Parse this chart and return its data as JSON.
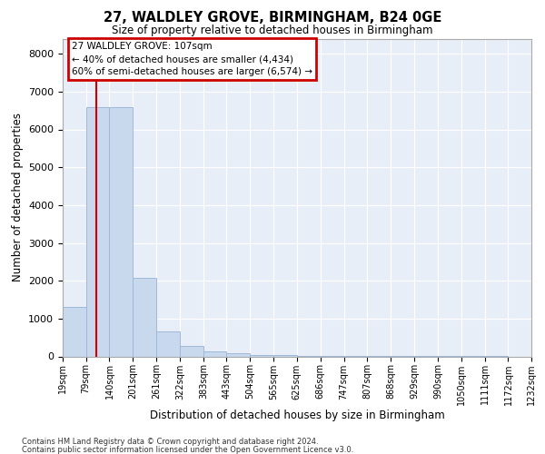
{
  "title1": "27, WALDLEY GROVE, BIRMINGHAM, B24 0GE",
  "title2": "Size of property relative to detached houses in Birmingham",
  "xlabel": "Distribution of detached houses by size in Birmingham",
  "ylabel": "Number of detached properties",
  "footnote1": "Contains HM Land Registry data © Crown copyright and database right 2024.",
  "footnote2": "Contains public sector information licensed under the Open Government Licence v3.0.",
  "annotation_line1": "27 WALDLEY GROVE: 107sqm",
  "annotation_line2": "← 40% of detached houses are smaller (4,434)",
  "annotation_line3": "60% of semi-detached houses are larger (6,574) →",
  "bar_color": "#c9d9ed",
  "bar_edge_color": "#a0b8d8",
  "vline_color": "#cc0000",
  "annotation_box_color": "#cc0000",
  "bin_edges": [
    19,
    79,
    140,
    201,
    261,
    322,
    383,
    443,
    504,
    565,
    625,
    686,
    747,
    807,
    868,
    929,
    990,
    1050,
    1111,
    1172,
    1232
  ],
  "bin_labels": [
    "19sqm",
    "79sqm",
    "140sqm",
    "201sqm",
    "261sqm",
    "322sqm",
    "383sqm",
    "443sqm",
    "504sqm",
    "565sqm",
    "625sqm",
    "686sqm",
    "747sqm",
    "807sqm",
    "868sqm",
    "929sqm",
    "990sqm",
    "1050sqm",
    "1111sqm",
    "1172sqm",
    "1232sqm"
  ],
  "bar_heights": [
    1300,
    6600,
    6580,
    2080,
    650,
    270,
    130,
    75,
    45,
    25,
    15,
    12,
    8,
    6,
    4,
    3,
    2,
    1,
    1,
    0
  ],
  "ylim": [
    0,
    8400
  ],
  "yticks": [
    0,
    1000,
    2000,
    3000,
    4000,
    5000,
    6000,
    7000,
    8000
  ],
  "vline_x": 107,
  "property_size": 107,
  "background_color": "#e8eef7"
}
